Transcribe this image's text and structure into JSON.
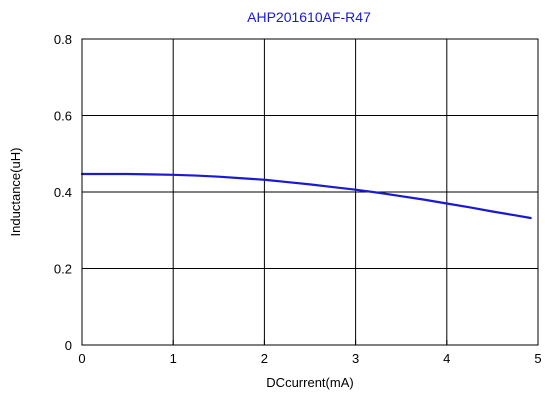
{
  "chart_data": {
    "type": "line",
    "title": "AHP201610AF-R47",
    "xlabel": "DCcurrent(mA)",
    "ylabel": "Inductance(uH)",
    "xlim": [
      0,
      5
    ],
    "ylim": [
      0,
      0.8
    ],
    "xticks": [
      0,
      1,
      2,
      3,
      4,
      5
    ],
    "yticks": [
      0,
      0.2,
      0.4,
      0.6,
      0.8
    ],
    "grid": true,
    "legend": "none",
    "series": [
      {
        "x": [
          0,
          0.25,
          0.5,
          0.75,
          1.0,
          1.25,
          1.5,
          1.75,
          2.0,
          2.25,
          2.5,
          2.75,
          3.0,
          3.25,
          3.5,
          3.75,
          4.0,
          4.25,
          4.5,
          4.75,
          4.92
        ],
        "y": [
          0.447,
          0.447,
          0.447,
          0.446,
          0.445,
          0.443,
          0.44,
          0.436,
          0.432,
          0.426,
          0.42,
          0.413,
          0.406,
          0.398,
          0.389,
          0.38,
          0.37,
          0.36,
          0.349,
          0.339,
          0.332
        ],
        "color": "#1a1ad0"
      }
    ]
  }
}
